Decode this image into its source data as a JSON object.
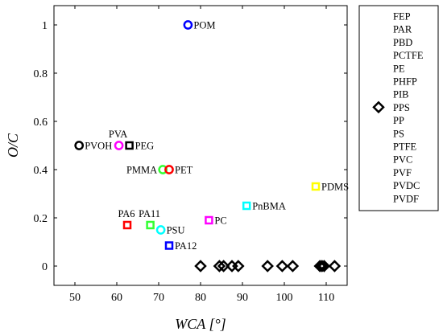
{
  "chart_data": {
    "type": "scatter",
    "xlabel": "WCA [°]",
    "ylabel": "O/C",
    "xlim": [
      45,
      115
    ],
    "ylim": [
      -0.08,
      1.08
    ],
    "xticks": [
      50,
      60,
      70,
      80,
      90,
      100,
      110
    ],
    "yticks": [
      0,
      0.2,
      0.4,
      0.6,
      0.8,
      1
    ],
    "ytick_labels": [
      "0",
      "0.2",
      "0.4",
      "0.6",
      "0.8",
      "1"
    ],
    "grid": false,
    "legend_position": "outside-right",
    "legend": [
      {
        "label": "FEP",
        "marker": "none"
      },
      {
        "label": "PAR",
        "marker": "none"
      },
      {
        "label": "PBD",
        "marker": "none"
      },
      {
        "label": "PCTFE",
        "marker": "none"
      },
      {
        "label": "PE",
        "marker": "none"
      },
      {
        "label": "PHFP",
        "marker": "none"
      },
      {
        "label": "PIB",
        "marker": "none"
      },
      {
        "label": "PPS",
        "marker": "diamond"
      },
      {
        "label": "PP",
        "marker": "none"
      },
      {
        "label": "PS",
        "marker": "none"
      },
      {
        "label": "PTFE",
        "marker": "none"
      },
      {
        "label": "PVC",
        "marker": "none"
      },
      {
        "label": "PVF",
        "marker": "none"
      },
      {
        "label": "PVDC",
        "marker": "none"
      },
      {
        "label": "PVDF",
        "marker": "none"
      }
    ],
    "labeled_points": [
      {
        "label": "POM",
        "x": 77,
        "y": 1.0,
        "marker": "circle",
        "color": "#0000ff",
        "label_pos": "right"
      },
      {
        "label": "PVA",
        "x": 60.5,
        "y": 0.5,
        "marker": "circle",
        "color": "#ff00ff",
        "label_pos": "above"
      },
      {
        "label": "PVOH",
        "x": 51,
        "y": 0.5,
        "marker": "circle",
        "color": "#000000",
        "label_pos": "right"
      },
      {
        "label": "PEG",
        "x": 63,
        "y": 0.5,
        "marker": "square",
        "color": "#000000",
        "label_pos": "right"
      },
      {
        "label": "PMMA",
        "x": 71,
        "y": 0.4,
        "marker": "circle",
        "color": "#33ff33",
        "label_pos": "left"
      },
      {
        "label": "PET",
        "x": 72.5,
        "y": 0.4,
        "marker": "circle",
        "color": "#ff0000",
        "label_pos": "right"
      },
      {
        "label": "PDMS",
        "x": 107.5,
        "y": 0.33,
        "marker": "square",
        "color": "#ffff00",
        "label_pos": "right"
      },
      {
        "label": "PnBMA",
        "x": 91,
        "y": 0.25,
        "marker": "square",
        "color": "#00ffff",
        "label_pos": "right"
      },
      {
        "label": "PA6",
        "x": 62.5,
        "y": 0.17,
        "marker": "square",
        "color": "#ff0000",
        "label_pos": "above"
      },
      {
        "label": "PA11",
        "x": 68,
        "y": 0.17,
        "marker": "square",
        "color": "#33ff33",
        "label_pos": "above"
      },
      {
        "label": "PC",
        "x": 82,
        "y": 0.19,
        "marker": "square",
        "color": "#ff00ff",
        "label_pos": "right"
      },
      {
        "label": "PSU",
        "x": 70.5,
        "y": 0.15,
        "marker": "circle",
        "color": "#00ffff",
        "label_pos": "right"
      },
      {
        "label": "PA12",
        "x": 72.5,
        "y": 0.085,
        "marker": "square",
        "color": "#0000ff",
        "label_pos": "right"
      }
    ],
    "diamond_points": {
      "color": "#000000",
      "x": [
        80,
        84.5,
        85.5,
        87.5,
        89,
        96,
        99.5,
        102,
        108.5,
        109,
        109.5,
        112
      ],
      "y": [
        0,
        0,
        0,
        0,
        0,
        0,
        0,
        0,
        0,
        0,
        0,
        0
      ]
    }
  }
}
